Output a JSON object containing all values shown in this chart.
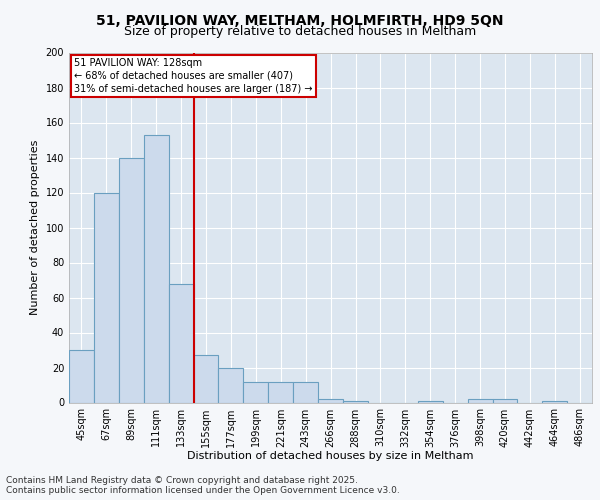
{
  "title1": "51, PAVILION WAY, MELTHAM, HOLMFIRTH, HD9 5QN",
  "title2": "Size of property relative to detached houses in Meltham",
  "xlabel": "Distribution of detached houses by size in Meltham",
  "ylabel": "Number of detached properties",
  "categories": [
    "45sqm",
    "67sqm",
    "89sqm",
    "111sqm",
    "133sqm",
    "155sqm",
    "177sqm",
    "199sqm",
    "221sqm",
    "243sqm",
    "266sqm",
    "288sqm",
    "310sqm",
    "332sqm",
    "354sqm",
    "376sqm",
    "398sqm",
    "420sqm",
    "442sqm",
    "464sqm",
    "486sqm"
  ],
  "values": [
    30,
    120,
    140,
    153,
    68,
    27,
    20,
    12,
    12,
    12,
    2,
    1,
    0,
    0,
    1,
    0,
    2,
    2,
    0,
    1,
    0
  ],
  "bar_color": "#ccdaec",
  "bar_edge_color": "#6a9fc0",
  "vline_color": "#cc0000",
  "vline_pos": 4.5,
  "annotation_lines": [
    "51 PAVILION WAY: 128sqm",
    "← 68% of detached houses are smaller (407)",
    "31% of semi-detached houses are larger (187) →"
  ],
  "annotation_box_edge_color": "#cc0000",
  "ylim": [
    0,
    200
  ],
  "yticks": [
    0,
    20,
    40,
    60,
    80,
    100,
    120,
    140,
    160,
    180,
    200
  ],
  "fig_bg_color": "#f5f7fa",
  "plot_bg_color": "#dce6f0",
  "grid_color": "#ffffff",
  "footer_line1": "Contains HM Land Registry data © Crown copyright and database right 2025.",
  "footer_line2": "Contains public sector information licensed under the Open Government Licence v3.0.",
  "title1_fontsize": 10,
  "title2_fontsize": 9,
  "tick_fontsize": 7,
  "ylabel_fontsize": 8,
  "xlabel_fontsize": 8,
  "annotation_fontsize": 7,
  "footer_fontsize": 6.5
}
